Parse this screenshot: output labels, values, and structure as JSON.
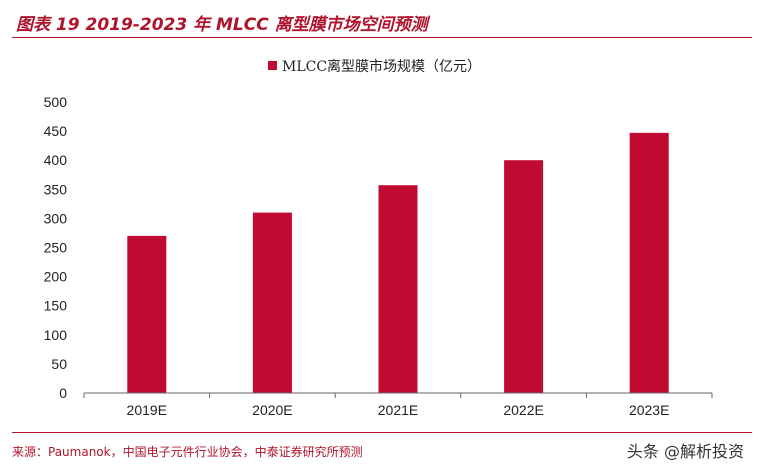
{
  "header": {
    "title": "图表 19 2019-2023 年 MLCC 离型膜市场空间预测"
  },
  "footer": {
    "source": "来源：Paumanok，中国电子元件行业协会，中泰证券研究所预测",
    "watermark": "头条 @解析投资"
  },
  "colors": {
    "accent": "#b0142c",
    "bar": "#c00a32",
    "axis": "#666666"
  },
  "chart_data": {
    "type": "bar",
    "categories": [
      "2019E",
      "2020E",
      "2021E",
      "2022E",
      "2023E"
    ],
    "series": [
      {
        "name": "MLCC离型膜市场规模（亿元）",
        "values": [
          270,
          310,
          357,
          400,
          447
        ]
      }
    ],
    "ylim": [
      0,
      500
    ],
    "yticks": [
      0,
      50,
      100,
      150,
      200,
      250,
      300,
      350,
      400,
      450,
      500
    ],
    "grid": false,
    "legend": "top-center",
    "xlabel": "",
    "ylabel": ""
  }
}
